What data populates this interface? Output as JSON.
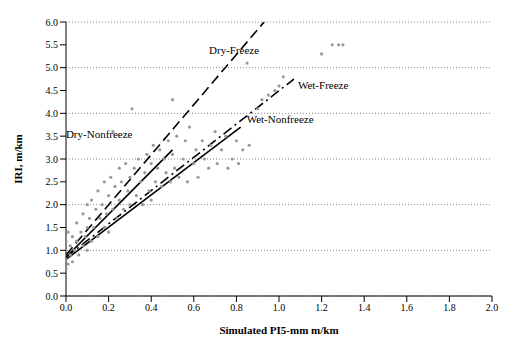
{
  "chart_data": {
    "type": "scatter",
    "xlabel": "Simulated PI5-mm m/km",
    "ylabel": "IRI, m/km",
    "xlim": [
      0,
      2.0
    ],
    "ylim": [
      0,
      6.0
    ],
    "xticks": [
      {
        "value": 0,
        "label": "0.0"
      },
      {
        "value": 0.2,
        "label": "0.2"
      },
      {
        "value": 0.4,
        "label": "0.4"
      },
      {
        "value": 0.6,
        "label": "0.6"
      },
      {
        "value": 0.8,
        "label": "0.8"
      },
      {
        "value": 1.0,
        "label": "1.0"
      },
      {
        "value": 1.2,
        "label": "1.2"
      },
      {
        "value": 1.4,
        "label": "1.4"
      },
      {
        "value": 1.6,
        "label": "1.6"
      },
      {
        "value": 1.8,
        "label": "1.8"
      },
      {
        "value": 2.0,
        "label": "2.0"
      }
    ],
    "yticks": [
      {
        "value": 0,
        "label": "0.0"
      },
      {
        "value": 0.5,
        "label": "0.5"
      },
      {
        "value": 1.0,
        "label": "1.0"
      },
      {
        "value": 1.5,
        "label": "1.5"
      },
      {
        "value": 2.0,
        "label": "2.0"
      },
      {
        "value": 2.5,
        "label": "2.5"
      },
      {
        "value": 3.0,
        "label": "3.0"
      },
      {
        "value": 3.5,
        "label": "3.5"
      },
      {
        "value": 4.0,
        "label": "4.0"
      },
      {
        "value": 4.5,
        "label": "4.5"
      },
      {
        "value": 5.0,
        "label": "5.0"
      },
      {
        "value": 5.5,
        "label": "5.5"
      },
      {
        "value": 6.0,
        "label": "6.0"
      }
    ],
    "grid": true,
    "color": "#999999",
    "marker": "circle",
    "x": [
      0,
      0,
      0,
      0,
      0.01,
      0.01,
      0.02,
      0.02,
      0.03,
      0.03,
      0.04,
      0.05,
      0.05,
      0.06,
      0.07,
      0.08,
      0.08,
      0.09,
      0.1,
      0.1,
      0.1,
      0.11,
      0.12,
      0.12,
      0.13,
      0.14,
      0.15,
      0.15,
      0.16,
      0.17,
      0.18,
      0.18,
      0.19,
      0.2,
      0.2,
      0.21,
      0.22,
      0.22,
      0.23,
      0.24,
      0.25,
      0.25,
      0.26,
      0.27,
      0.28,
      0.29,
      0.3,
      0.3,
      0.31,
      0.32,
      0.33,
      0.34,
      0.35,
      0.36,
      0.37,
      0.38,
      0.39,
      0.4,
      0.4,
      0.41,
      0.42,
      0.43,
      0.44,
      0.45,
      0.46,
      0.47,
      0.48,
      0.49,
      0.5,
      0.5,
      0.51,
      0.52,
      0.53,
      0.55,
      0.56,
      0.57,
      0.58,
      0.6,
      0.61,
      0.62,
      0.64,
      0.65,
      0.67,
      0.68,
      0.7,
      0.71,
      0.73,
      0.75,
      0.76,
      0.78,
      0.8,
      0.81,
      0.83,
      0.85,
      0.86,
      0.9,
      0.92,
      0.95,
      0.98,
      1.0,
      1.02,
      1.2,
      1.25,
      1.28,
      1.3
    ],
    "values": [
      0.6,
      0.8,
      1.0,
      1.2,
      0.7,
      1.4,
      0.9,
      1.1,
      1.3,
      0.75,
      1.0,
      1.6,
      1.2,
      0.9,
      1.4,
      1.1,
      1.8,
      1.3,
      1.0,
      1.5,
      2.0,
      1.7,
      1.2,
      2.1,
      1.5,
      1.9,
      1.3,
      2.3,
      1.7,
      2.0,
      1.5,
      2.5,
      1.8,
      2.2,
      1.4,
      2.6,
      3.6,
      1.9,
      2.4,
      1.7,
      2.8,
      2.1,
      2.5,
      1.9,
      2.9,
      2.3,
      2.6,
      2.0,
      4.1,
      2.8,
      2.2,
      3.0,
      2.5,
      2.0,
      2.7,
      3.1,
      2.3,
      2.9,
      2.1,
      3.3,
      2.5,
      2.8,
      3.2,
      2.4,
      3.0,
      2.7,
      3.4,
      2.5,
      3.1,
      4.3,
      2.8,
      3.5,
      2.6,
      3.0,
      3.4,
      2.5,
      3.7,
      2.9,
      3.2,
      2.6,
      3.4,
      3.0,
      2.8,
      3.3,
      3.6,
      2.9,
      3.2,
      3.5,
      2.8,
      3.0,
      3.4,
      2.9,
      3.2,
      5.1,
      3.3,
      4.1,
      4.3,
      4.4,
      4.5,
      4.6,
      4.8,
      5.3,
      5.5,
      5.5,
      5.5
    ],
    "series": [
      {
        "name": "Dry-Freeze",
        "type": "line",
        "line_style": "dashed",
        "color": "#000000",
        "x": [
          0,
          0.93
        ],
        "values": [
          0.9,
          6.0
        ]
      },
      {
        "name": "Dry-Nonfreeze",
        "type": "line",
        "line_style": "solid",
        "color": "#000000",
        "x": [
          0,
          0.5
        ],
        "values": [
          0.85,
          3.2
        ]
      },
      {
        "name": "Wet-Freeze",
        "type": "line",
        "line_style": "dashdot",
        "color": "#000000",
        "x": [
          0,
          1.07
        ],
        "values": [
          0.85,
          4.75
        ]
      },
      {
        "name": "Wet-Nonfreeze",
        "type": "line",
        "line_style": "solid",
        "color": "#000000",
        "x": [
          0,
          0.82
        ],
        "values": [
          0.8,
          3.7
        ]
      }
    ]
  }
}
